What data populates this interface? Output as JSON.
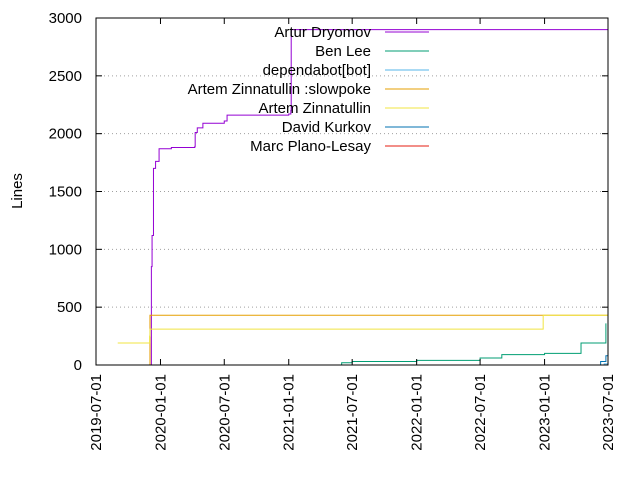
{
  "chart_data": {
    "type": "line",
    "ylabel": "Lines",
    "xlabel": "",
    "xlim": [
      "2019-07-01",
      "2023-07-01"
    ],
    "ylim": [
      0,
      3000
    ],
    "x_ticks": [
      "2019-07-01",
      "2020-01-01",
      "2020-07-01",
      "2021-01-01",
      "2021-07-01",
      "2022-01-01",
      "2022-07-01",
      "2023-01-01",
      "2023-07-01"
    ],
    "y_ticks": [
      0,
      500,
      1000,
      1500,
      2000,
      2500,
      3000
    ],
    "grid": "horizontal-dotted",
    "legend_position": "top-right",
    "series": [
      {
        "name": "Artur Dryomov",
        "color": "#9400d3",
        "points": [
          [
            "2019-12-01",
            0
          ],
          [
            "2019-12-06",
            850
          ],
          [
            "2019-12-08",
            1120
          ],
          [
            "2019-12-12",
            1700
          ],
          [
            "2019-12-18",
            1760
          ],
          [
            "2019-12-28",
            1870
          ],
          [
            "2020-02-01",
            1880
          ],
          [
            "2020-04-08",
            1890
          ],
          [
            "2020-04-09",
            2010
          ],
          [
            "2020-04-15",
            2050
          ],
          [
            "2020-05-01",
            2090
          ],
          [
            "2020-07-01",
            2110
          ],
          [
            "2020-07-09",
            2160
          ],
          [
            "2021-01-01",
            2170
          ],
          [
            "2021-01-07",
            2200
          ],
          [
            "2021-01-08",
            2900
          ],
          [
            "2023-07-01",
            2900
          ]
        ]
      },
      {
        "name": "Ben Lee",
        "color": "#009e73",
        "points": [
          [
            "2020-12-01",
            0
          ],
          [
            "2021-06-01",
            20
          ],
          [
            "2021-07-01",
            30
          ],
          [
            "2022-01-01",
            40
          ],
          [
            "2022-07-01",
            60
          ],
          [
            "2022-09-01",
            90
          ],
          [
            "2023-01-01",
            100
          ],
          [
            "2023-04-15",
            190
          ],
          [
            "2023-06-15",
            190
          ],
          [
            "2023-06-25",
            360
          ]
        ]
      },
      {
        "name": "dependabot[bot]",
        "color": "#56b4e9",
        "points": [
          [
            "2023-03-01",
            0
          ],
          [
            "2023-06-20",
            10
          ],
          [
            "2023-07-01",
            10
          ]
        ]
      },
      {
        "name": "Artem Zinnatullin :slowpoke",
        "color": "#e69f00",
        "points": [
          [
            "2019-12-01",
            0
          ],
          [
            "2019-12-02",
            430
          ],
          [
            "2023-07-01",
            430
          ]
        ]
      },
      {
        "name": "Artem Zinnatullin",
        "color": "#f0e442",
        "points": [
          [
            "2019-09-01",
            190
          ],
          [
            "2019-12-01",
            250
          ],
          [
            "2019-12-02",
            310
          ],
          [
            "2022-11-20",
            310
          ],
          [
            "2022-12-28",
            430
          ],
          [
            "2023-07-01",
            430
          ]
        ]
      },
      {
        "name": "David Kurkov",
        "color": "#0072b2",
        "points": [
          [
            "2023-03-15",
            0
          ],
          [
            "2023-06-10",
            30
          ],
          [
            "2023-06-25",
            80
          ],
          [
            "2023-07-01",
            80
          ]
        ]
      },
      {
        "name": "Marc Plano-Lesay",
        "color": "#e51e10",
        "points": [
          [
            "2023-06-25",
            0
          ],
          [
            "2023-07-01",
            5
          ]
        ]
      }
    ]
  }
}
